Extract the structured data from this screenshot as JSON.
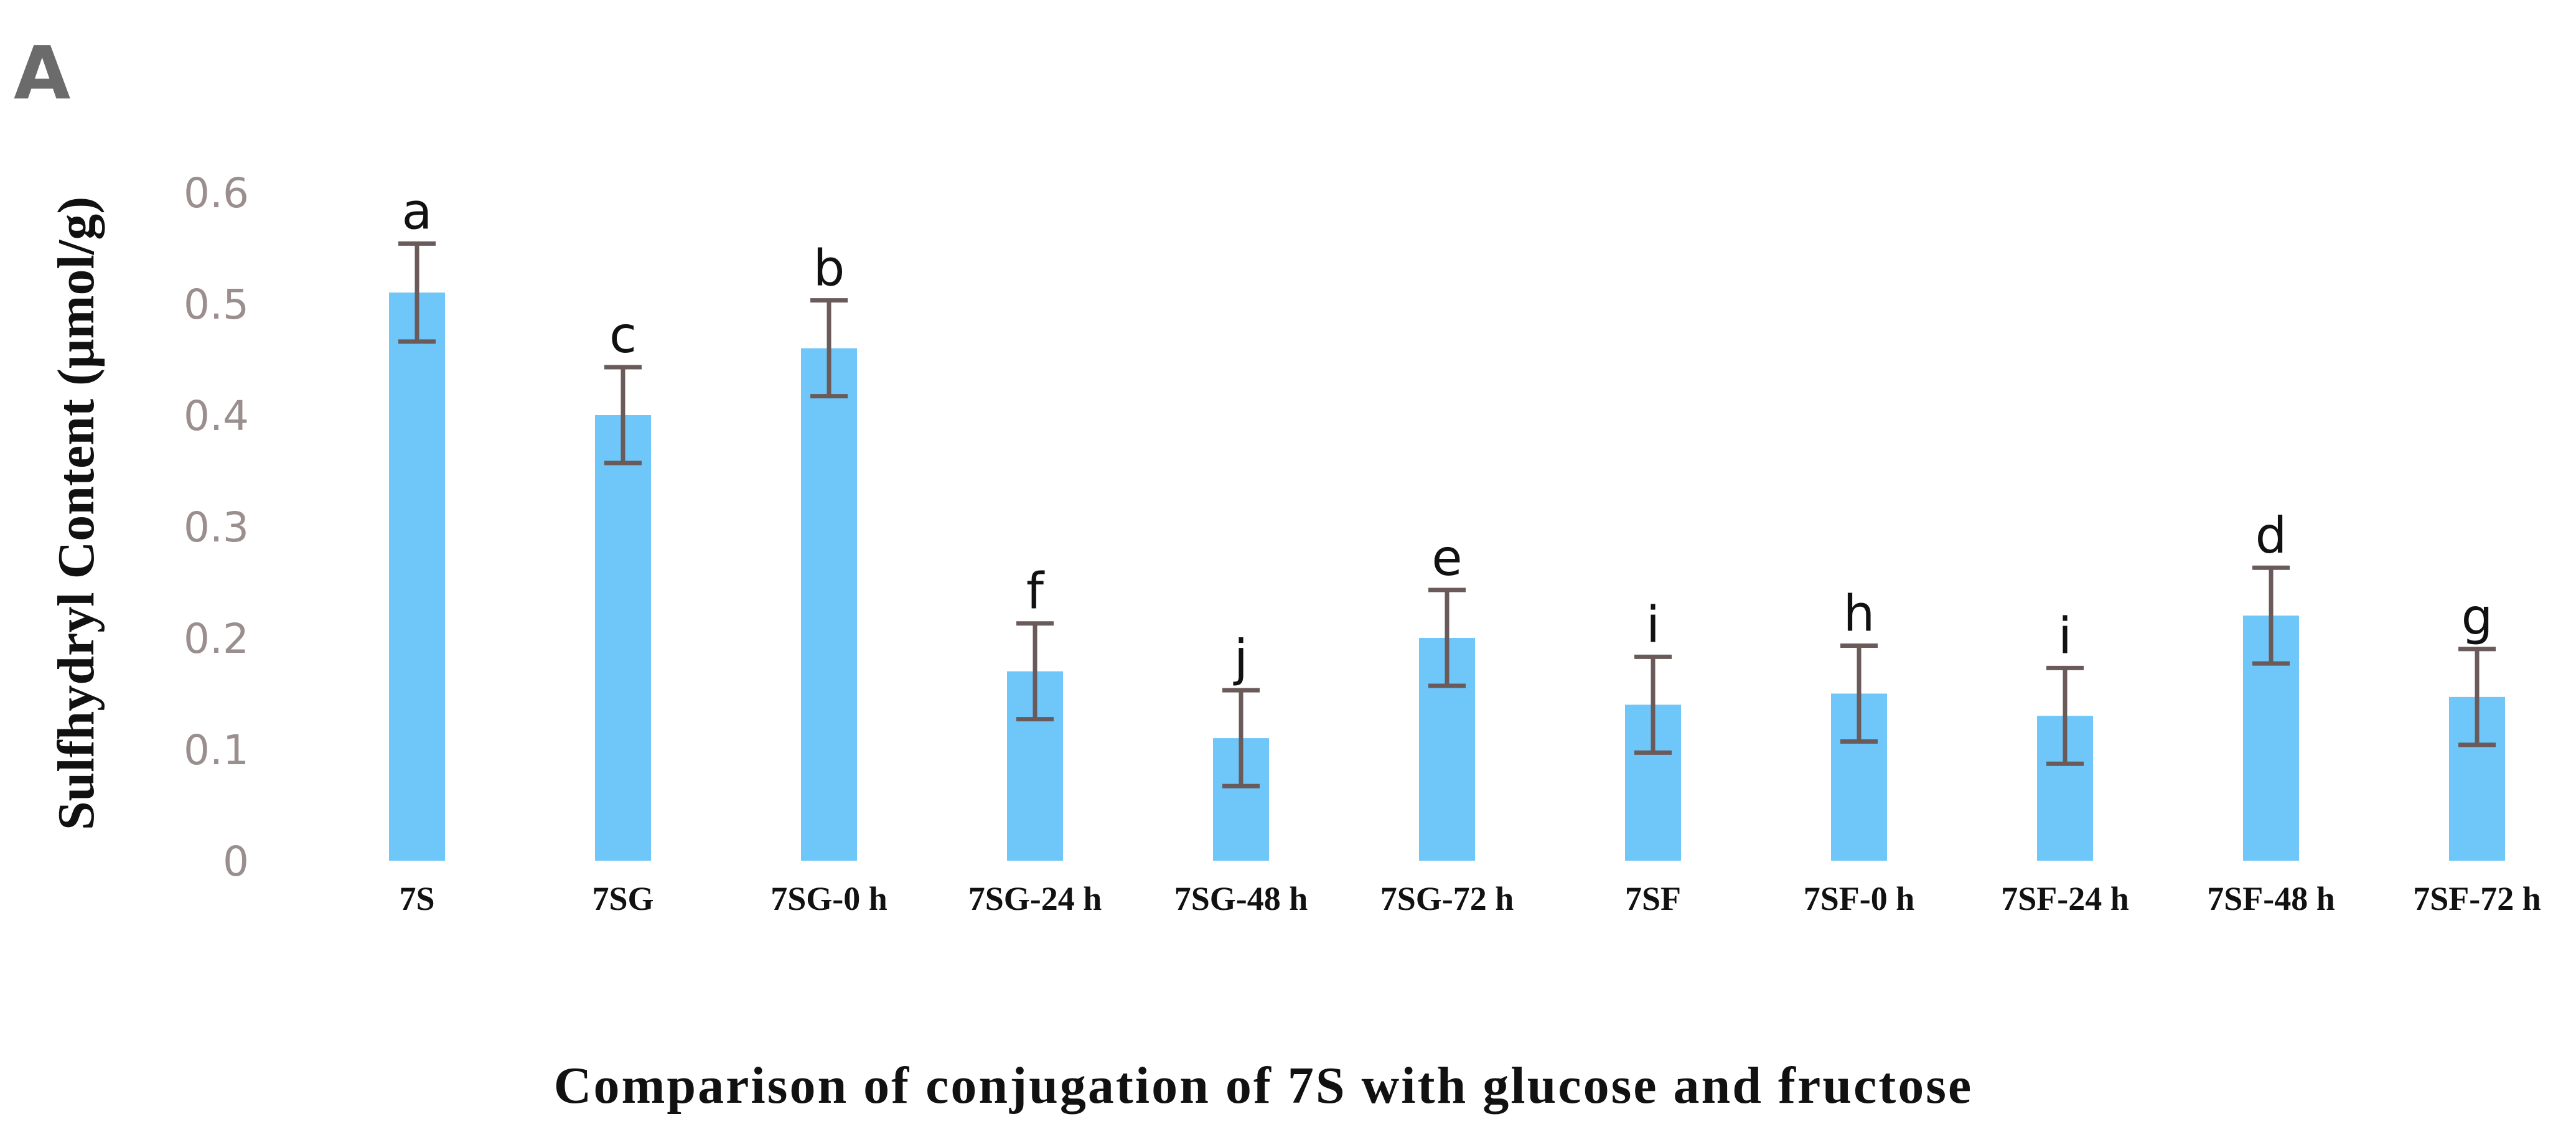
{
  "panel_label": "A",
  "chart_data": {
    "type": "bar",
    "title": "",
    "xlabel": "Comparison of conjugation of 7S with glucose and fructose",
    "ylabel": "Sulfhydryl Content (μmol/g)",
    "ylim": [
      0,
      0.6
    ],
    "yticks": [
      "0",
      "0.1",
      "0.2",
      "0.3",
      "0.4",
      "0.5",
      "0.6"
    ],
    "grid": false,
    "legend": "none",
    "bar_color": "#6ec6f9",
    "error_bar_color": "#6a5a5a",
    "categories": [
      "7S",
      "7SG",
      "7SG-0 h",
      "7SG-24 h",
      "7SG-48 h",
      "7SG-72 h",
      "7SF",
      "7SF-0 h",
      "7SF-24 h",
      "7SF-48 h",
      "7SF-72 h"
    ],
    "values": [
      0.51,
      0.4,
      0.46,
      0.17,
      0.11,
      0.2,
      0.14,
      0.15,
      0.13,
      0.22,
      0.147
    ],
    "errors": [
      0.044,
      0.043,
      0.043,
      0.043,
      0.043,
      0.043,
      0.043,
      0.043,
      0.043,
      0.043,
      0.043
    ],
    "significance_letters": [
      "a",
      "c",
      "b",
      "f",
      "j",
      "e",
      "i",
      "h",
      "i",
      "d",
      "g"
    ]
  }
}
